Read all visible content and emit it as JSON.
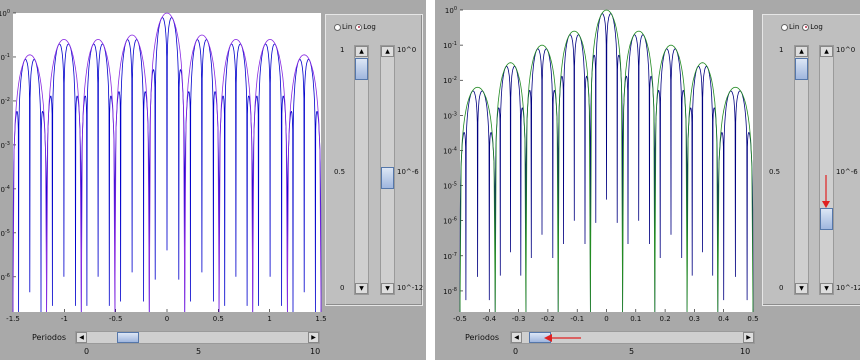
{
  "windows": [
    {
      "id": "left",
      "chart_data": {
        "type": "line",
        "xlim": [
          -1.5,
          1.5
        ],
        "x_ticks": [
          "-1.5",
          "-1",
          "-0.5",
          "0",
          "0.5",
          "1",
          "1.5"
        ],
        "y_scale": "log",
        "y_exponents": [
          0,
          -1,
          -2,
          -3,
          -4,
          -5,
          -6
        ],
        "ylim_exponent": [
          -6.8,
          0
        ],
        "lobe_centers": [
          -1.345,
          -1.0,
          -0.67,
          -0.345,
          0,
          0.345,
          0.67,
          1.0,
          1.345
        ],
        "lobe_peaks_log": [
          -0.95,
          -0.6,
          -0.6,
          -0.5,
          0,
          -0.5,
          -0.6,
          -0.6,
          -0.95
        ],
        "series": [
          {
            "color": "#0000cc"
          },
          {
            "color": "#8a2be2"
          }
        ]
      },
      "controls": {
        "radio": [
          {
            "label": "Lin",
            "selected": false
          },
          {
            "label": "Log",
            "selected": true
          }
        ],
        "linear_slider": {
          "labels": [
            "1",
            "0.5",
            "0"
          ],
          "value": 1.0
        },
        "log_slider": {
          "labels": [
            "10^0",
            "10^-6",
            "10^-12"
          ],
          "value_exponent": -6
        }
      },
      "periods": {
        "label": "Periodos",
        "ticks": [
          "0",
          "5",
          "10"
        ],
        "value": 2.0,
        "max": 10
      }
    },
    {
      "id": "right",
      "chart_data": {
        "type": "line",
        "xlim": [
          -0.5,
          0.5
        ],
        "x_ticks": [
          "-0.5",
          "-0.4",
          "-0.3",
          "-0.2",
          "-0.1",
          "0",
          "0.1",
          "0.2",
          "0.3",
          "0.4",
          "0.5"
        ],
        "y_scale": "log",
        "y_exponents": [
          0,
          -1,
          -2,
          -3,
          -4,
          -5,
          -6,
          -7,
          -8
        ],
        "ylim_exponent": [
          -8.6,
          0
        ],
        "lobe_centers": [
          -0.43,
          -0.33,
          -0.22,
          -0.11,
          0,
          0.11,
          0.22,
          0.33,
          0.43
        ],
        "lobe_peaks_log": [
          -2.2,
          -1.5,
          -1.0,
          -0.6,
          0,
          -0.6,
          -1.0,
          -1.5,
          -2.2
        ],
        "series": [
          {
            "color": "#000080"
          },
          {
            "color": "#228b22"
          }
        ]
      },
      "controls": {
        "radio": [
          {
            "label": "Lin",
            "selected": false
          },
          {
            "label": "Log",
            "selected": true
          }
        ],
        "linear_slider": {
          "labels": [
            "1",
            "0.5",
            "0"
          ],
          "value": 1.0
        },
        "log_slider": {
          "labels": [
            "10^0",
            "10^-6",
            "10^-12"
          ],
          "value_exponent": -8
        }
      },
      "periods": {
        "label": "Periodos",
        "ticks": [
          "0",
          "5",
          "10"
        ],
        "value": 0.8,
        "max": 10
      }
    }
  ]
}
